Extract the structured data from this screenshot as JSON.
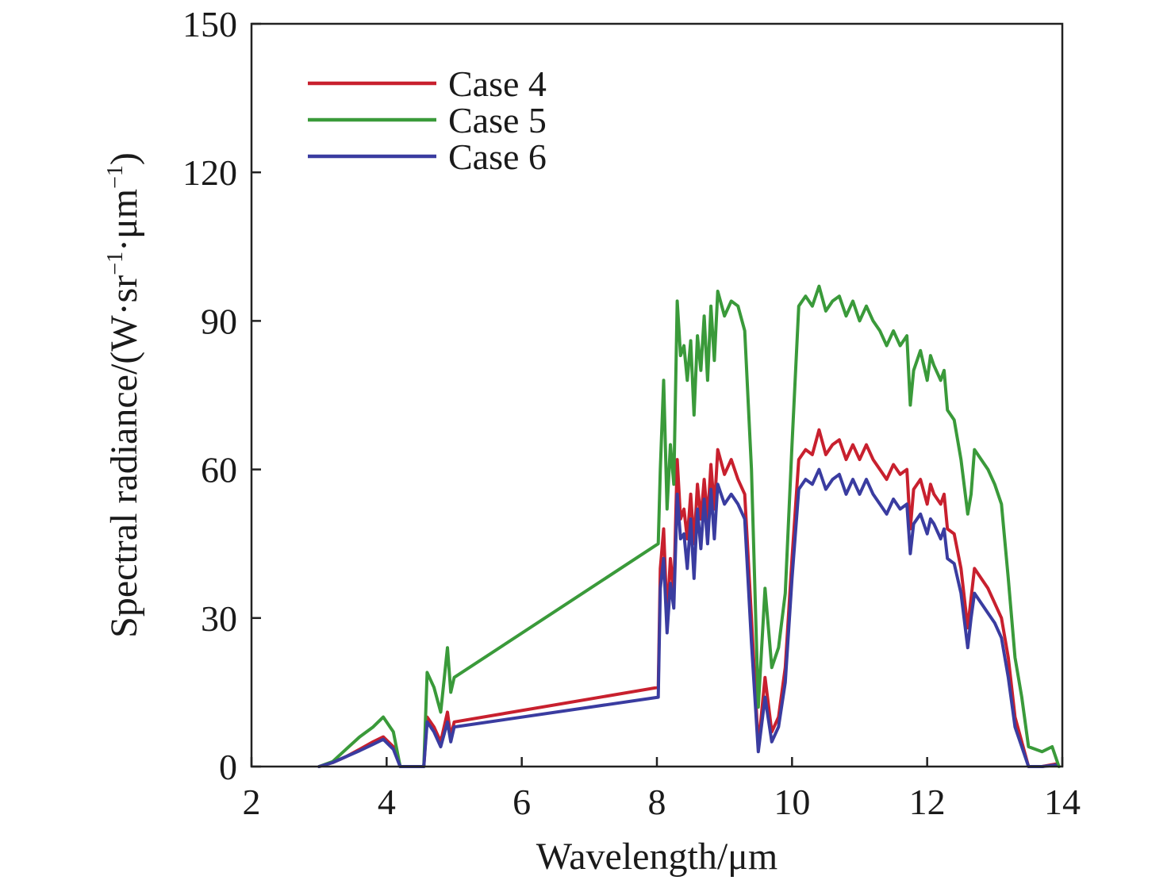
{
  "chart_data": {
    "type": "line",
    "xlabel": "Wavelength/μm",
    "ylabel": "Spectral radiance/(W·sr",
    "ylabel_sup1": "−1",
    "ylabel_mid": "·μm",
    "ylabel_sup2": "−1",
    "ylabel_end": ")",
    "xlim": [
      2,
      14
    ],
    "ylim": [
      0,
      150
    ],
    "xticks": [
      2,
      4,
      6,
      8,
      10,
      12,
      14
    ],
    "yticks": [
      0,
      30,
      60,
      90,
      120,
      150
    ],
    "grid": false,
    "legend_position": "top-left",
    "series": [
      {
        "name": "Case 4",
        "color": "#c8202e",
        "points": [
          [
            3.0,
            0
          ],
          [
            3.2,
            0.8
          ],
          [
            3.4,
            2
          ],
          [
            3.6,
            3.5
          ],
          [
            3.8,
            5
          ],
          [
            3.95,
            6
          ],
          [
            4.1,
            4
          ],
          [
            4.2,
            0
          ],
          [
            4.55,
            0
          ],
          [
            4.6,
            10
          ],
          [
            4.7,
            8
          ],
          [
            4.8,
            5
          ],
          [
            4.9,
            11
          ],
          [
            4.95,
            6
          ],
          [
            5.0,
            9
          ],
          [
            8.02,
            16
          ],
          [
            8.05,
            40
          ],
          [
            8.1,
            48
          ],
          [
            8.15,
            30
          ],
          [
            8.2,
            42
          ],
          [
            8.25,
            35
          ],
          [
            8.3,
            62
          ],
          [
            8.35,
            50
          ],
          [
            8.4,
            52
          ],
          [
            8.45,
            46
          ],
          [
            8.5,
            55
          ],
          [
            8.55,
            45
          ],
          [
            8.6,
            57
          ],
          [
            8.65,
            50
          ],
          [
            8.7,
            58
          ],
          [
            8.75,
            50
          ],
          [
            8.8,
            61
          ],
          [
            8.85,
            52
          ],
          [
            8.9,
            64
          ],
          [
            9.0,
            59
          ],
          [
            9.1,
            62
          ],
          [
            9.2,
            58
          ],
          [
            9.3,
            55
          ],
          [
            9.4,
            30
          ],
          [
            9.5,
            4
          ],
          [
            9.6,
            18
          ],
          [
            9.7,
            7
          ],
          [
            9.8,
            10
          ],
          [
            9.9,
            20
          ],
          [
            10.0,
            42
          ],
          [
            10.1,
            62
          ],
          [
            10.2,
            64
          ],
          [
            10.3,
            63
          ],
          [
            10.4,
            68
          ],
          [
            10.5,
            63
          ],
          [
            10.6,
            65
          ],
          [
            10.7,
            66
          ],
          [
            10.8,
            62
          ],
          [
            10.9,
            65
          ],
          [
            11.0,
            62
          ],
          [
            11.1,
            65
          ],
          [
            11.2,
            62
          ],
          [
            11.3,
            60
          ],
          [
            11.4,
            58
          ],
          [
            11.5,
            61
          ],
          [
            11.6,
            59
          ],
          [
            11.7,
            60
          ],
          [
            11.75,
            48
          ],
          [
            11.8,
            56
          ],
          [
            11.9,
            58
          ],
          [
            12.0,
            53
          ],
          [
            12.05,
            57
          ],
          [
            12.1,
            55
          ],
          [
            12.2,
            53
          ],
          [
            12.25,
            55
          ],
          [
            12.3,
            48
          ],
          [
            12.4,
            47
          ],
          [
            12.5,
            40
          ],
          [
            12.6,
            28
          ],
          [
            12.65,
            34
          ],
          [
            12.7,
            40
          ],
          [
            12.8,
            38
          ],
          [
            12.9,
            36
          ],
          [
            13.0,
            33
          ],
          [
            13.1,
            30
          ],
          [
            13.2,
            22
          ],
          [
            13.3,
            10
          ],
          [
            13.4,
            5
          ],
          [
            13.5,
            0
          ],
          [
            13.7,
            0
          ],
          [
            13.9,
            0.5
          ]
        ]
      },
      {
        "name": "Case 5",
        "color": "#3a9a3a",
        "points": [
          [
            3.0,
            0
          ],
          [
            3.2,
            1
          ],
          [
            3.4,
            3.5
          ],
          [
            3.6,
            6
          ],
          [
            3.8,
            8
          ],
          [
            3.95,
            10
          ],
          [
            4.1,
            7
          ],
          [
            4.2,
            0
          ],
          [
            4.55,
            0
          ],
          [
            4.6,
            19
          ],
          [
            4.7,
            16
          ],
          [
            4.8,
            11
          ],
          [
            4.9,
            24
          ],
          [
            4.95,
            15
          ],
          [
            5.0,
            18
          ],
          [
            8.02,
            45
          ],
          [
            8.05,
            60
          ],
          [
            8.1,
            78
          ],
          [
            8.15,
            52
          ],
          [
            8.2,
            65
          ],
          [
            8.25,
            57
          ],
          [
            8.3,
            94
          ],
          [
            8.35,
            83
          ],
          [
            8.4,
            85
          ],
          [
            8.45,
            78
          ],
          [
            8.5,
            86
          ],
          [
            8.55,
            71
          ],
          [
            8.6,
            87
          ],
          [
            8.65,
            80
          ],
          [
            8.7,
            91
          ],
          [
            8.75,
            78
          ],
          [
            8.8,
            93
          ],
          [
            8.85,
            82
          ],
          [
            8.9,
            96
          ],
          [
            9.0,
            91
          ],
          [
            9.1,
            94
          ],
          [
            9.2,
            93
          ],
          [
            9.3,
            88
          ],
          [
            9.4,
            60
          ],
          [
            9.5,
            12
          ],
          [
            9.6,
            36
          ],
          [
            9.7,
            20
          ],
          [
            9.8,
            24
          ],
          [
            9.9,
            35
          ],
          [
            10.0,
            65
          ],
          [
            10.1,
            93
          ],
          [
            10.2,
            95
          ],
          [
            10.3,
            93
          ],
          [
            10.4,
            97
          ],
          [
            10.5,
            92
          ],
          [
            10.6,
            94
          ],
          [
            10.7,
            95
          ],
          [
            10.8,
            91
          ],
          [
            10.9,
            94
          ],
          [
            11.0,
            90
          ],
          [
            11.1,
            93
          ],
          [
            11.2,
            90
          ],
          [
            11.3,
            88
          ],
          [
            11.4,
            85
          ],
          [
            11.5,
            88
          ],
          [
            11.6,
            85
          ],
          [
            11.7,
            87
          ],
          [
            11.75,
            73
          ],
          [
            11.8,
            80
          ],
          [
            11.9,
            84
          ],
          [
            12.0,
            78
          ],
          [
            12.05,
            83
          ],
          [
            12.1,
            81
          ],
          [
            12.2,
            78
          ],
          [
            12.25,
            80
          ],
          [
            12.3,
            72
          ],
          [
            12.4,
            70
          ],
          [
            12.5,
            62
          ],
          [
            12.6,
            51
          ],
          [
            12.65,
            55
          ],
          [
            12.7,
            64
          ],
          [
            12.8,
            62
          ],
          [
            12.9,
            60
          ],
          [
            13.0,
            57
          ],
          [
            13.1,
            53
          ],
          [
            13.2,
            38
          ],
          [
            13.3,
            22
          ],
          [
            13.4,
            14
          ],
          [
            13.5,
            4
          ],
          [
            13.7,
            3
          ],
          [
            13.85,
            4
          ],
          [
            13.95,
            0
          ]
        ]
      },
      {
        "name": "Case 6",
        "color": "#3a3ca0",
        "points": [
          [
            3.0,
            0
          ],
          [
            3.2,
            0.8
          ],
          [
            3.4,
            2
          ],
          [
            3.6,
            3.2
          ],
          [
            3.8,
            4.5
          ],
          [
            3.95,
            5.5
          ],
          [
            4.1,
            3.5
          ],
          [
            4.2,
            0
          ],
          [
            4.55,
            0
          ],
          [
            4.6,
            9
          ],
          [
            4.7,
            7
          ],
          [
            4.8,
            4
          ],
          [
            4.9,
            9
          ],
          [
            4.95,
            5
          ],
          [
            5.0,
            8
          ],
          [
            8.02,
            14
          ],
          [
            8.05,
            36
          ],
          [
            8.1,
            42
          ],
          [
            8.15,
            27
          ],
          [
            8.2,
            37
          ],
          [
            8.25,
            32
          ],
          [
            8.3,
            55
          ],
          [
            8.35,
            46
          ],
          [
            8.4,
            47
          ],
          [
            8.45,
            40
          ],
          [
            8.5,
            50
          ],
          [
            8.55,
            38
          ],
          [
            8.6,
            52
          ],
          [
            8.65,
            44
          ],
          [
            8.7,
            54
          ],
          [
            8.75,
            45
          ],
          [
            8.8,
            56
          ],
          [
            8.85,
            46
          ],
          [
            8.9,
            57
          ],
          [
            9.0,
            53
          ],
          [
            9.1,
            55
          ],
          [
            9.2,
            53
          ],
          [
            9.3,
            50
          ],
          [
            9.4,
            25
          ],
          [
            9.5,
            3
          ],
          [
            9.6,
            14
          ],
          [
            9.7,
            5
          ],
          [
            9.8,
            8
          ],
          [
            9.9,
            17
          ],
          [
            10.0,
            38
          ],
          [
            10.1,
            56
          ],
          [
            10.2,
            58
          ],
          [
            10.3,
            57
          ],
          [
            10.4,
            60
          ],
          [
            10.5,
            56
          ],
          [
            10.6,
            58
          ],
          [
            10.7,
            59
          ],
          [
            10.8,
            55
          ],
          [
            10.9,
            58
          ],
          [
            11.0,
            55
          ],
          [
            11.1,
            58
          ],
          [
            11.2,
            55
          ],
          [
            11.3,
            53
          ],
          [
            11.4,
            51
          ],
          [
            11.5,
            54
          ],
          [
            11.6,
            52
          ],
          [
            11.7,
            53
          ],
          [
            11.75,
            43
          ],
          [
            11.8,
            49
          ],
          [
            11.9,
            51
          ],
          [
            12.0,
            47
          ],
          [
            12.05,
            50
          ],
          [
            12.1,
            49
          ],
          [
            12.2,
            46
          ],
          [
            12.25,
            48
          ],
          [
            12.3,
            42
          ],
          [
            12.4,
            41
          ],
          [
            12.5,
            35
          ],
          [
            12.6,
            24
          ],
          [
            12.65,
            30
          ],
          [
            12.7,
            35
          ],
          [
            12.8,
            33
          ],
          [
            12.9,
            31
          ],
          [
            13.0,
            29
          ],
          [
            13.1,
            26
          ],
          [
            13.2,
            18
          ],
          [
            13.3,
            8
          ],
          [
            13.4,
            4
          ],
          [
            13.5,
            0
          ],
          [
            13.7,
            0
          ],
          [
            13.9,
            0.3
          ]
        ]
      }
    ]
  }
}
